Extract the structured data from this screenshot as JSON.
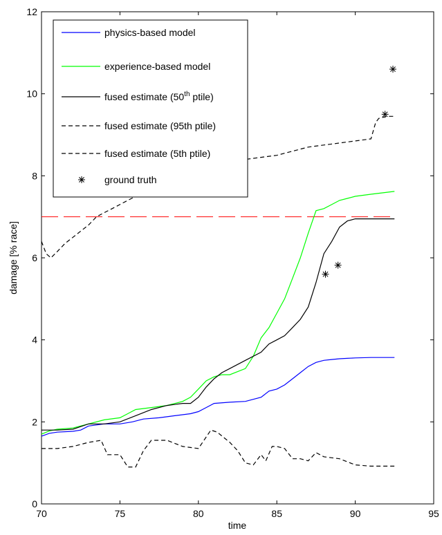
{
  "chart_data": {
    "type": "line",
    "xlabel": "time",
    "ylabel": "damage [% race]",
    "xlim": [
      70,
      95
    ],
    "ylim": [
      0,
      12
    ],
    "xticks": [
      70,
      75,
      80,
      85,
      90,
      95
    ],
    "yticks": [
      0,
      2,
      4,
      6,
      8,
      10,
      12
    ],
    "grid": false,
    "legend_position": "top-left",
    "threshold": {
      "y": 7,
      "x_range": [
        70,
        92.5
      ],
      "color": "#ff0000",
      "style": "dashed"
    },
    "legend": [
      {
        "label": "physics-based model",
        "sup": "",
        "suffix": ""
      },
      {
        "label": "experience-based model",
        "sup": "",
        "suffix": ""
      },
      {
        "label": "fused estimate (50",
        "sup": "th",
        "suffix": " ptile)"
      },
      {
        "label": "fused estimate (95th ptile)",
        "sup": "",
        "suffix": ""
      },
      {
        "label": "fused estimate (5th ptile)",
        "sup": "",
        "suffix": ""
      },
      {
        "label": "ground truth",
        "sup": "",
        "suffix": ""
      }
    ],
    "series": [
      {
        "name": "physics-based model",
        "color": "#0000ff",
        "style": "solid",
        "x": [
          70,
          70.5,
          71,
          72,
          72.5,
          73,
          74,
          75,
          75.8,
          76.5,
          77.5,
          78.5,
          79.5,
          80,
          80.5,
          81,
          82,
          83,
          84,
          84.5,
          85,
          85.5,
          86,
          86.5,
          87,
          87.5,
          88,
          88.5,
          89,
          89.5,
          90,
          91,
          92.5
        ],
        "y": [
          1.65,
          1.72,
          1.75,
          1.77,
          1.8,
          1.9,
          1.95,
          1.95,
          2.0,
          2.07,
          2.1,
          2.15,
          2.2,
          2.25,
          2.35,
          2.45,
          2.48,
          2.5,
          2.6,
          2.75,
          2.8,
          2.9,
          3.05,
          3.2,
          3.35,
          3.45,
          3.5,
          3.52,
          3.54,
          3.55,
          3.56,
          3.57,
          3.57
        ]
      },
      {
        "name": "experience-based model",
        "color": "#00ff00",
        "style": "solid",
        "x": [
          70,
          70.5,
          71,
          72,
          73,
          74,
          75,
          75.5,
          76,
          77,
          78,
          79,
          79.5,
          80,
          80.5,
          81,
          81.5,
          82,
          83,
          83.5,
          84,
          84.5,
          85,
          85.5,
          86,
          86.5,
          87,
          87.5,
          88,
          88.5,
          89,
          89.5,
          90,
          91,
          92.5
        ],
        "y": [
          1.7,
          1.78,
          1.82,
          1.85,
          1.95,
          2.05,
          2.1,
          2.2,
          2.3,
          2.35,
          2.4,
          2.5,
          2.6,
          2.8,
          3.0,
          3.1,
          3.15,
          3.15,
          3.3,
          3.6,
          4.05,
          4.3,
          4.65,
          5.0,
          5.5,
          6.0,
          6.6,
          7.15,
          7.2,
          7.3,
          7.4,
          7.45,
          7.5,
          7.55,
          7.62
        ]
      },
      {
        "name": "fused estimate (50th ptile)",
        "color": "#000000",
        "style": "solid",
        "x": [
          70,
          71,
          72,
          73,
          74,
          75,
          76,
          77,
          78,
          79,
          79.5,
          80,
          80.5,
          81,
          81.5,
          82,
          83,
          84,
          84.5,
          85,
          85.5,
          86,
          86.5,
          87,
          87.5,
          88,
          88.5,
          89,
          89.5,
          90,
          91,
          92.5
        ],
        "y": [
          1.8,
          1.8,
          1.82,
          1.95,
          1.95,
          2.0,
          2.15,
          2.3,
          2.4,
          2.45,
          2.45,
          2.6,
          2.85,
          3.05,
          3.2,
          3.3,
          3.5,
          3.7,
          3.9,
          4.0,
          4.1,
          4.3,
          4.5,
          4.8,
          5.4,
          6.1,
          6.4,
          6.75,
          6.9,
          6.95,
          6.95,
          6.95
        ]
      },
      {
        "name": "fused estimate (95th ptile)",
        "color": "#000000",
        "style": "dashed",
        "x": [
          70,
          70.3,
          70.6,
          71,
          71.5,
          72,
          72.5,
          73,
          73.5,
          74,
          74.5,
          75,
          75.5,
          76,
          76.5,
          77,
          78,
          79,
          80,
          81,
          82,
          83,
          84,
          85,
          86,
          87,
          88,
          89,
          90,
          91,
          91.3,
          91.5,
          92,
          92.5
        ],
        "y": [
          6.4,
          6.1,
          6.0,
          6.15,
          6.35,
          6.5,
          6.65,
          6.8,
          7.0,
          7.1,
          7.2,
          7.3,
          7.4,
          7.5,
          7.55,
          7.6,
          7.75,
          7.9,
          8.0,
          8.15,
          8.3,
          8.4,
          8.45,
          8.5,
          8.6,
          8.7,
          8.75,
          8.8,
          8.85,
          8.9,
          9.3,
          9.4,
          9.45,
          9.45
        ]
      },
      {
        "name": "fused estimate (5th ptile)",
        "color": "#000000",
        "style": "dashed",
        "x": [
          70,
          71,
          72,
          73,
          73.8,
          74.2,
          75,
          75.5,
          76,
          76.5,
          77,
          78,
          79,
          80,
          80.8,
          81.2,
          82,
          82.5,
          83,
          83.5,
          84,
          84.3,
          84.7,
          85,
          85.5,
          86,
          86.5,
          87,
          87.5,
          88,
          89,
          90,
          91,
          92.5
        ],
        "y": [
          1.35,
          1.35,
          1.4,
          1.5,
          1.55,
          1.2,
          1.2,
          0.9,
          0.9,
          1.3,
          1.55,
          1.55,
          1.4,
          1.35,
          1.8,
          1.75,
          1.5,
          1.3,
          1.0,
          0.95,
          1.2,
          1.05,
          1.4,
          1.4,
          1.35,
          1.1,
          1.1,
          1.05,
          1.25,
          1.15,
          1.1,
          0.95,
          0.92,
          0.92
        ]
      }
    ],
    "ground_truth": {
      "name": "ground truth",
      "x": [
        88.1,
        88.9,
        91.9,
        92.4
      ],
      "y": [
        5.6,
        5.82,
        9.5,
        10.6
      ]
    }
  }
}
